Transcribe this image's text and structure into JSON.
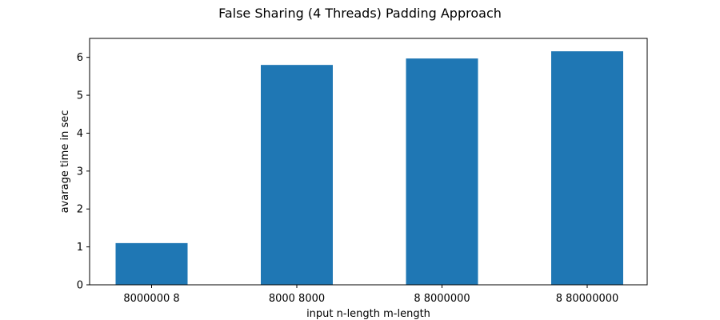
{
  "chart_data": {
    "type": "bar",
    "title": "False Sharing (4 Threads) Padding Approach",
    "xlabel": "input n-length m-length",
    "ylabel": "avarage time in sec",
    "categories": [
      "8000000 8",
      "8000 8000",
      "8 8000000",
      "8 80000000"
    ],
    "values": [
      1.1,
      5.8,
      5.97,
      6.16
    ],
    "ylim": [
      0,
      6.5
    ],
    "yticks": [
      0,
      1,
      2,
      3,
      4,
      5,
      6
    ],
    "bar_color": "#1f77b4",
    "grid": false,
    "legend": false
  }
}
